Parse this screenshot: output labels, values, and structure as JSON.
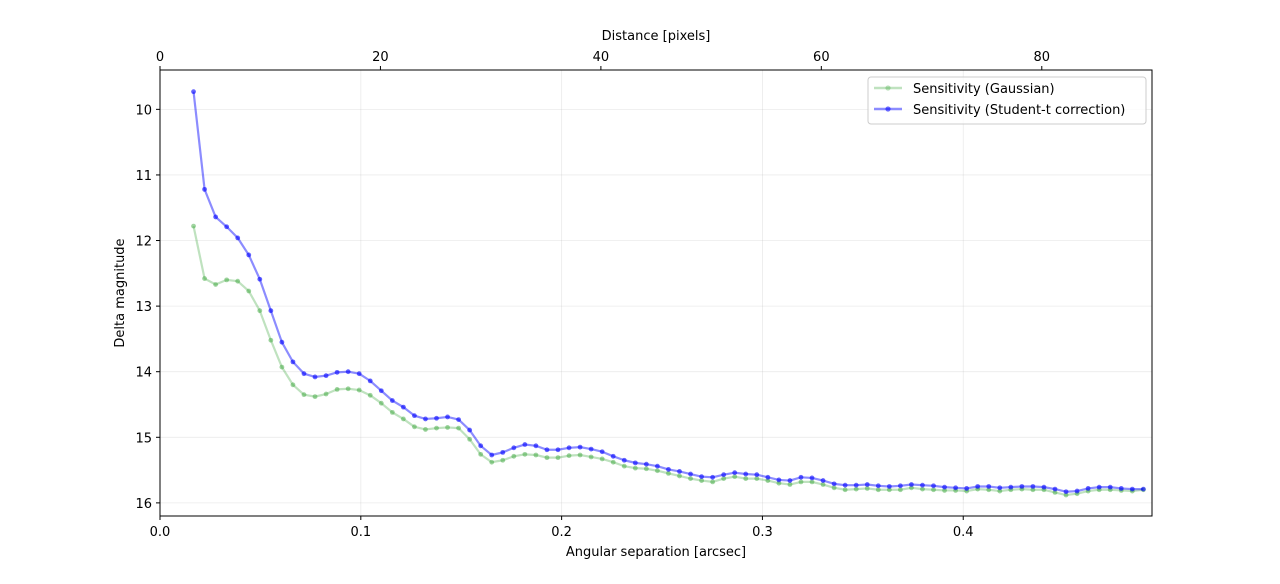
{
  "chart_data": {
    "type": "line",
    "title": "",
    "xlabel": "Angular separation [arcsec]",
    "ylabel": "Delta magnitude",
    "top_xlabel": "Distance [pixels]",
    "xlim": [
      0.0,
      0.494
    ],
    "ylim": [
      16.2,
      9.4
    ],
    "y_inverted": true,
    "top_xlim": [
      0,
      90
    ],
    "x_ticks": [
      0.0,
      0.1,
      0.2,
      0.3,
      0.4
    ],
    "x_tick_labels": [
      "0.0",
      "0.1",
      "0.2",
      "0.3",
      "0.4"
    ],
    "y_ticks": [
      10,
      11,
      12,
      13,
      14,
      15,
      16
    ],
    "y_tick_labels": [
      "10",
      "11",
      "12",
      "13",
      "14",
      "15",
      "16"
    ],
    "top_x_ticks": [
      0,
      20,
      40,
      60,
      80
    ],
    "top_x_tick_labels": [
      "0",
      "20",
      "40",
      "60",
      "80"
    ],
    "grid": true,
    "legend_position": "top-right",
    "x": [
      0.0167,
      0.0222,
      0.0277,
      0.0332,
      0.0387,
      0.0442,
      0.0497,
      0.0552,
      0.0607,
      0.0662,
      0.0717,
      0.0772,
      0.0827,
      0.0882,
      0.0937,
      0.0992,
      0.1047,
      0.1102,
      0.1157,
      0.1212,
      0.1267,
      0.1322,
      0.1377,
      0.1432,
      0.1487,
      0.1542,
      0.1597,
      0.1652,
      0.1707,
      0.1762,
      0.1817,
      0.1872,
      0.1927,
      0.1982,
      0.2037,
      0.2092,
      0.2147,
      0.2202,
      0.2257,
      0.2312,
      0.2367,
      0.2422,
      0.2477,
      0.2532,
      0.2587,
      0.2642,
      0.2697,
      0.2752,
      0.2807,
      0.2862,
      0.2917,
      0.2972,
      0.3027,
      0.3082,
      0.3137,
      0.3192,
      0.3247,
      0.3302,
      0.3357,
      0.3412,
      0.3467,
      0.3522,
      0.3577,
      0.3632,
      0.3687,
      0.3742,
      0.3797,
      0.3852,
      0.3907,
      0.3962,
      0.4017,
      0.4072,
      0.4127,
      0.4182,
      0.4237,
      0.4292,
      0.4347,
      0.4402,
      0.4457,
      0.4512,
      0.4567,
      0.4622,
      0.4677,
      0.4732,
      0.4787,
      0.4842,
      0.4897
    ],
    "series": [
      {
        "name": "Sensitivity (Gaussian)",
        "color": "#2ca02c",
        "alpha": 0.3,
        "values": [
          11.78,
          12.58,
          12.67,
          12.6,
          12.62,
          12.77,
          13.07,
          13.52,
          13.93,
          14.2,
          14.35,
          14.38,
          14.34,
          14.27,
          14.26,
          14.28,
          14.36,
          14.48,
          14.62,
          14.72,
          14.84,
          14.88,
          14.86,
          14.85,
          14.86,
          15.03,
          15.26,
          15.38,
          15.35,
          15.29,
          15.26,
          15.27,
          15.31,
          15.31,
          15.28,
          15.27,
          15.3,
          15.33,
          15.38,
          15.44,
          15.47,
          15.48,
          15.51,
          15.55,
          15.59,
          15.63,
          15.66,
          15.68,
          15.63,
          15.6,
          15.63,
          15.63,
          15.66,
          15.7,
          15.72,
          15.68,
          15.68,
          15.72,
          15.77,
          15.8,
          15.79,
          15.78,
          15.8,
          15.8,
          15.8,
          15.77,
          15.79,
          15.8,
          15.81,
          15.81,
          15.82,
          15.79,
          15.8,
          15.82,
          15.8,
          15.79,
          15.8,
          15.8,
          15.84,
          15.88,
          15.86,
          15.82,
          15.8,
          15.8,
          15.81,
          15.82,
          15.8
        ]
      },
      {
        "name": "Sensitivity (Student-t correction)",
        "color": "#0000ff",
        "alpha": 0.45,
        "values": [
          9.73,
          11.22,
          11.64,
          11.79,
          11.96,
          12.22,
          12.59,
          13.07,
          13.55,
          13.85,
          14.03,
          14.08,
          14.06,
          14.01,
          14.0,
          14.03,
          14.14,
          14.29,
          14.44,
          14.54,
          14.67,
          14.72,
          14.71,
          14.69,
          14.73,
          14.89,
          15.13,
          15.27,
          15.23,
          15.16,
          15.11,
          15.13,
          15.19,
          15.19,
          15.16,
          15.15,
          15.18,
          15.22,
          15.29,
          15.35,
          15.39,
          15.41,
          15.44,
          15.49,
          15.52,
          15.56,
          15.6,
          15.61,
          15.57,
          15.54,
          15.56,
          15.57,
          15.61,
          15.65,
          15.66,
          15.61,
          15.62,
          15.66,
          15.71,
          15.73,
          15.73,
          15.72,
          15.74,
          15.75,
          15.74,
          15.72,
          15.73,
          15.74,
          15.76,
          15.77,
          15.78,
          15.75,
          15.75,
          15.77,
          15.76,
          15.75,
          15.75,
          15.76,
          15.79,
          15.83,
          15.82,
          15.78,
          15.76,
          15.76,
          15.78,
          15.79,
          15.79
        ]
      }
    ]
  }
}
